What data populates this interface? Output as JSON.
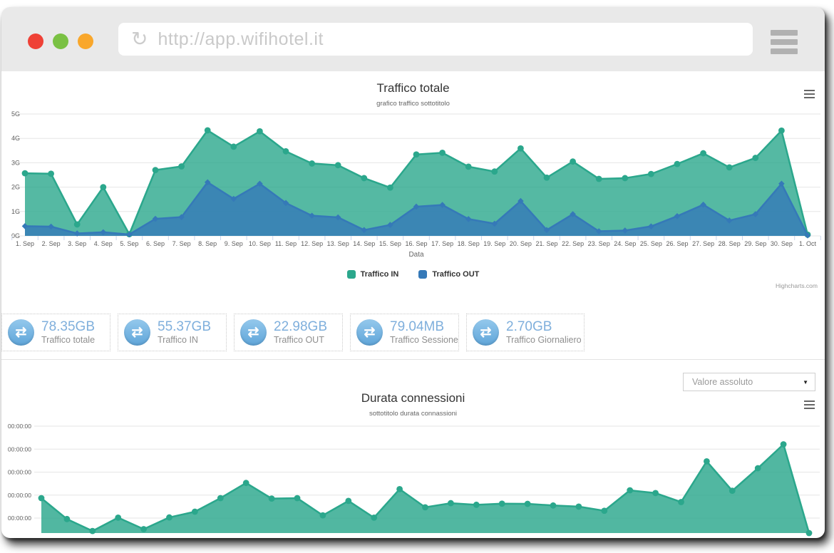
{
  "browser": {
    "url": "http://app.wifihotel.it",
    "traffic_lights": [
      "#ef4136",
      "#7ac143",
      "#f9a72b"
    ]
  },
  "icons": {
    "reload_glyph": "↻",
    "transfer_glyph": "⇄"
  },
  "stats": {
    "items": [
      {
        "value": "78.35GB",
        "label": "Traffico totale"
      },
      {
        "value": "55.37GB",
        "label": "Traffico IN"
      },
      {
        "value": "22.98GB",
        "label": "Traffico OUT"
      },
      {
        "value": "79.04MB",
        "label": "Traffico Sessione"
      },
      {
        "value": "2.70GB",
        "label": "Traffico Giornaliero"
      }
    ]
  },
  "filter": {
    "selected": "Valore assoluto"
  },
  "chart_data": [
    {
      "type": "area",
      "title": "Traffico totale",
      "subtitle": "grafico traffico sottotitolo",
      "xlabel": "Data",
      "credits": "Highcharts.com",
      "grid": true,
      "legend_position": "bottom",
      "ylim": [
        0,
        5
      ],
      "yticks": [
        "0G",
        "1G",
        "2G",
        "3G",
        "4G",
        "5G"
      ],
      "categories": [
        "1. Sep",
        "2. Sep",
        "3. Sep",
        "4. Sep",
        "5. Sep",
        "6. Sep",
        "7. Sep",
        "8. Sep",
        "9. Sep",
        "10. Sep",
        "11. Sep",
        "12. Sep",
        "13. Sep",
        "14. Sep",
        "15. Sep",
        "16. Sep",
        "17. Sep",
        "18. Sep",
        "19. Sep",
        "20. Sep",
        "21. Sep",
        "22. Sep",
        "23. Sep",
        "24. Sep",
        "25. Sep",
        "26. Sep",
        "27. Sep",
        "28. Sep",
        "29. Sep",
        "30. Sep",
        "1. Oct"
      ],
      "series": [
        {
          "name": "Traffico IN",
          "color": "#2ba78c",
          "marker": "circle",
          "values": [
            2.57,
            2.55,
            0.47,
            2.0,
            0.07,
            2.7,
            2.85,
            4.33,
            3.66,
            4.29,
            3.47,
            2.97,
            2.9,
            2.37,
            1.98,
            3.34,
            3.41,
            2.84,
            2.64,
            3.59,
            2.39,
            3.05,
            2.34,
            2.37,
            2.54,
            2.95,
            3.39,
            2.81,
            3.2,
            4.32,
            0.05
          ]
        },
        {
          "name": "Traffico OUT",
          "color": "#3579b8",
          "marker": "diamond",
          "values": [
            0.4,
            0.38,
            0.1,
            0.15,
            0.06,
            0.7,
            0.77,
            2.2,
            1.52,
            2.14,
            1.35,
            0.83,
            0.76,
            0.24,
            0.45,
            1.2,
            1.27,
            0.69,
            0.5,
            1.43,
            0.24,
            0.89,
            0.19,
            0.22,
            0.39,
            0.81,
            1.28,
            0.63,
            0.89,
            2.14,
            0.02
          ]
        }
      ]
    },
    {
      "type": "area",
      "title": "Durata connessioni",
      "subtitle": "sottotitolo durata connassioni",
      "grid": true,
      "yticks": [
        "00:00:00",
        "00:00:00",
        "00:00:00",
        "00:00:00",
        "00:00:00"
      ],
      "series": [
        {
          "name": "Durata connessioni",
          "color": "#2ba78c",
          "marker": "circle",
          "values": [
            1.52,
            0.61,
            0.09,
            0.67,
            0.17,
            0.68,
            0.93,
            1.52,
            2.18,
            1.5,
            1.52,
            0.77,
            1.4,
            0.67,
            1.91,
            1.12,
            1.3,
            1.23,
            1.28,
            1.27,
            1.2,
            1.15,
            0.97,
            1.86,
            1.74,
            1.35,
            3.12,
            1.84,
            2.82,
            3.86,
            0.0
          ]
        }
      ]
    }
  ]
}
